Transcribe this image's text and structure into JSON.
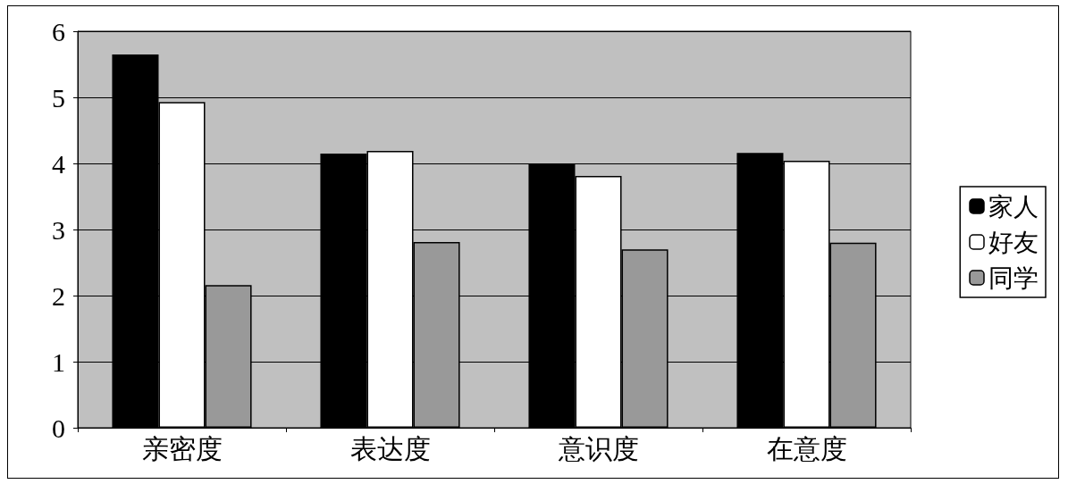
{
  "chart_data": {
    "type": "bar",
    "categories": [
      "亲密度",
      "表达度",
      "意识度",
      "在意度"
    ],
    "series": [
      {
        "name": "家人",
        "color": "#000000",
        "values": [
          5.65,
          4.15,
          4.0,
          4.16
        ]
      },
      {
        "name": "好友",
        "color": "#ffffff",
        "values": [
          4.93,
          4.19,
          3.81,
          4.04
        ]
      },
      {
        "name": "同学",
        "color": "#999999",
        "values": [
          2.16,
          2.81,
          2.7,
          2.8
        ]
      }
    ],
    "ylim": [
      0,
      6
    ],
    "yticks": [
      0,
      1,
      2,
      3,
      4,
      5,
      6
    ],
    "grid": "y",
    "legend": "right"
  }
}
